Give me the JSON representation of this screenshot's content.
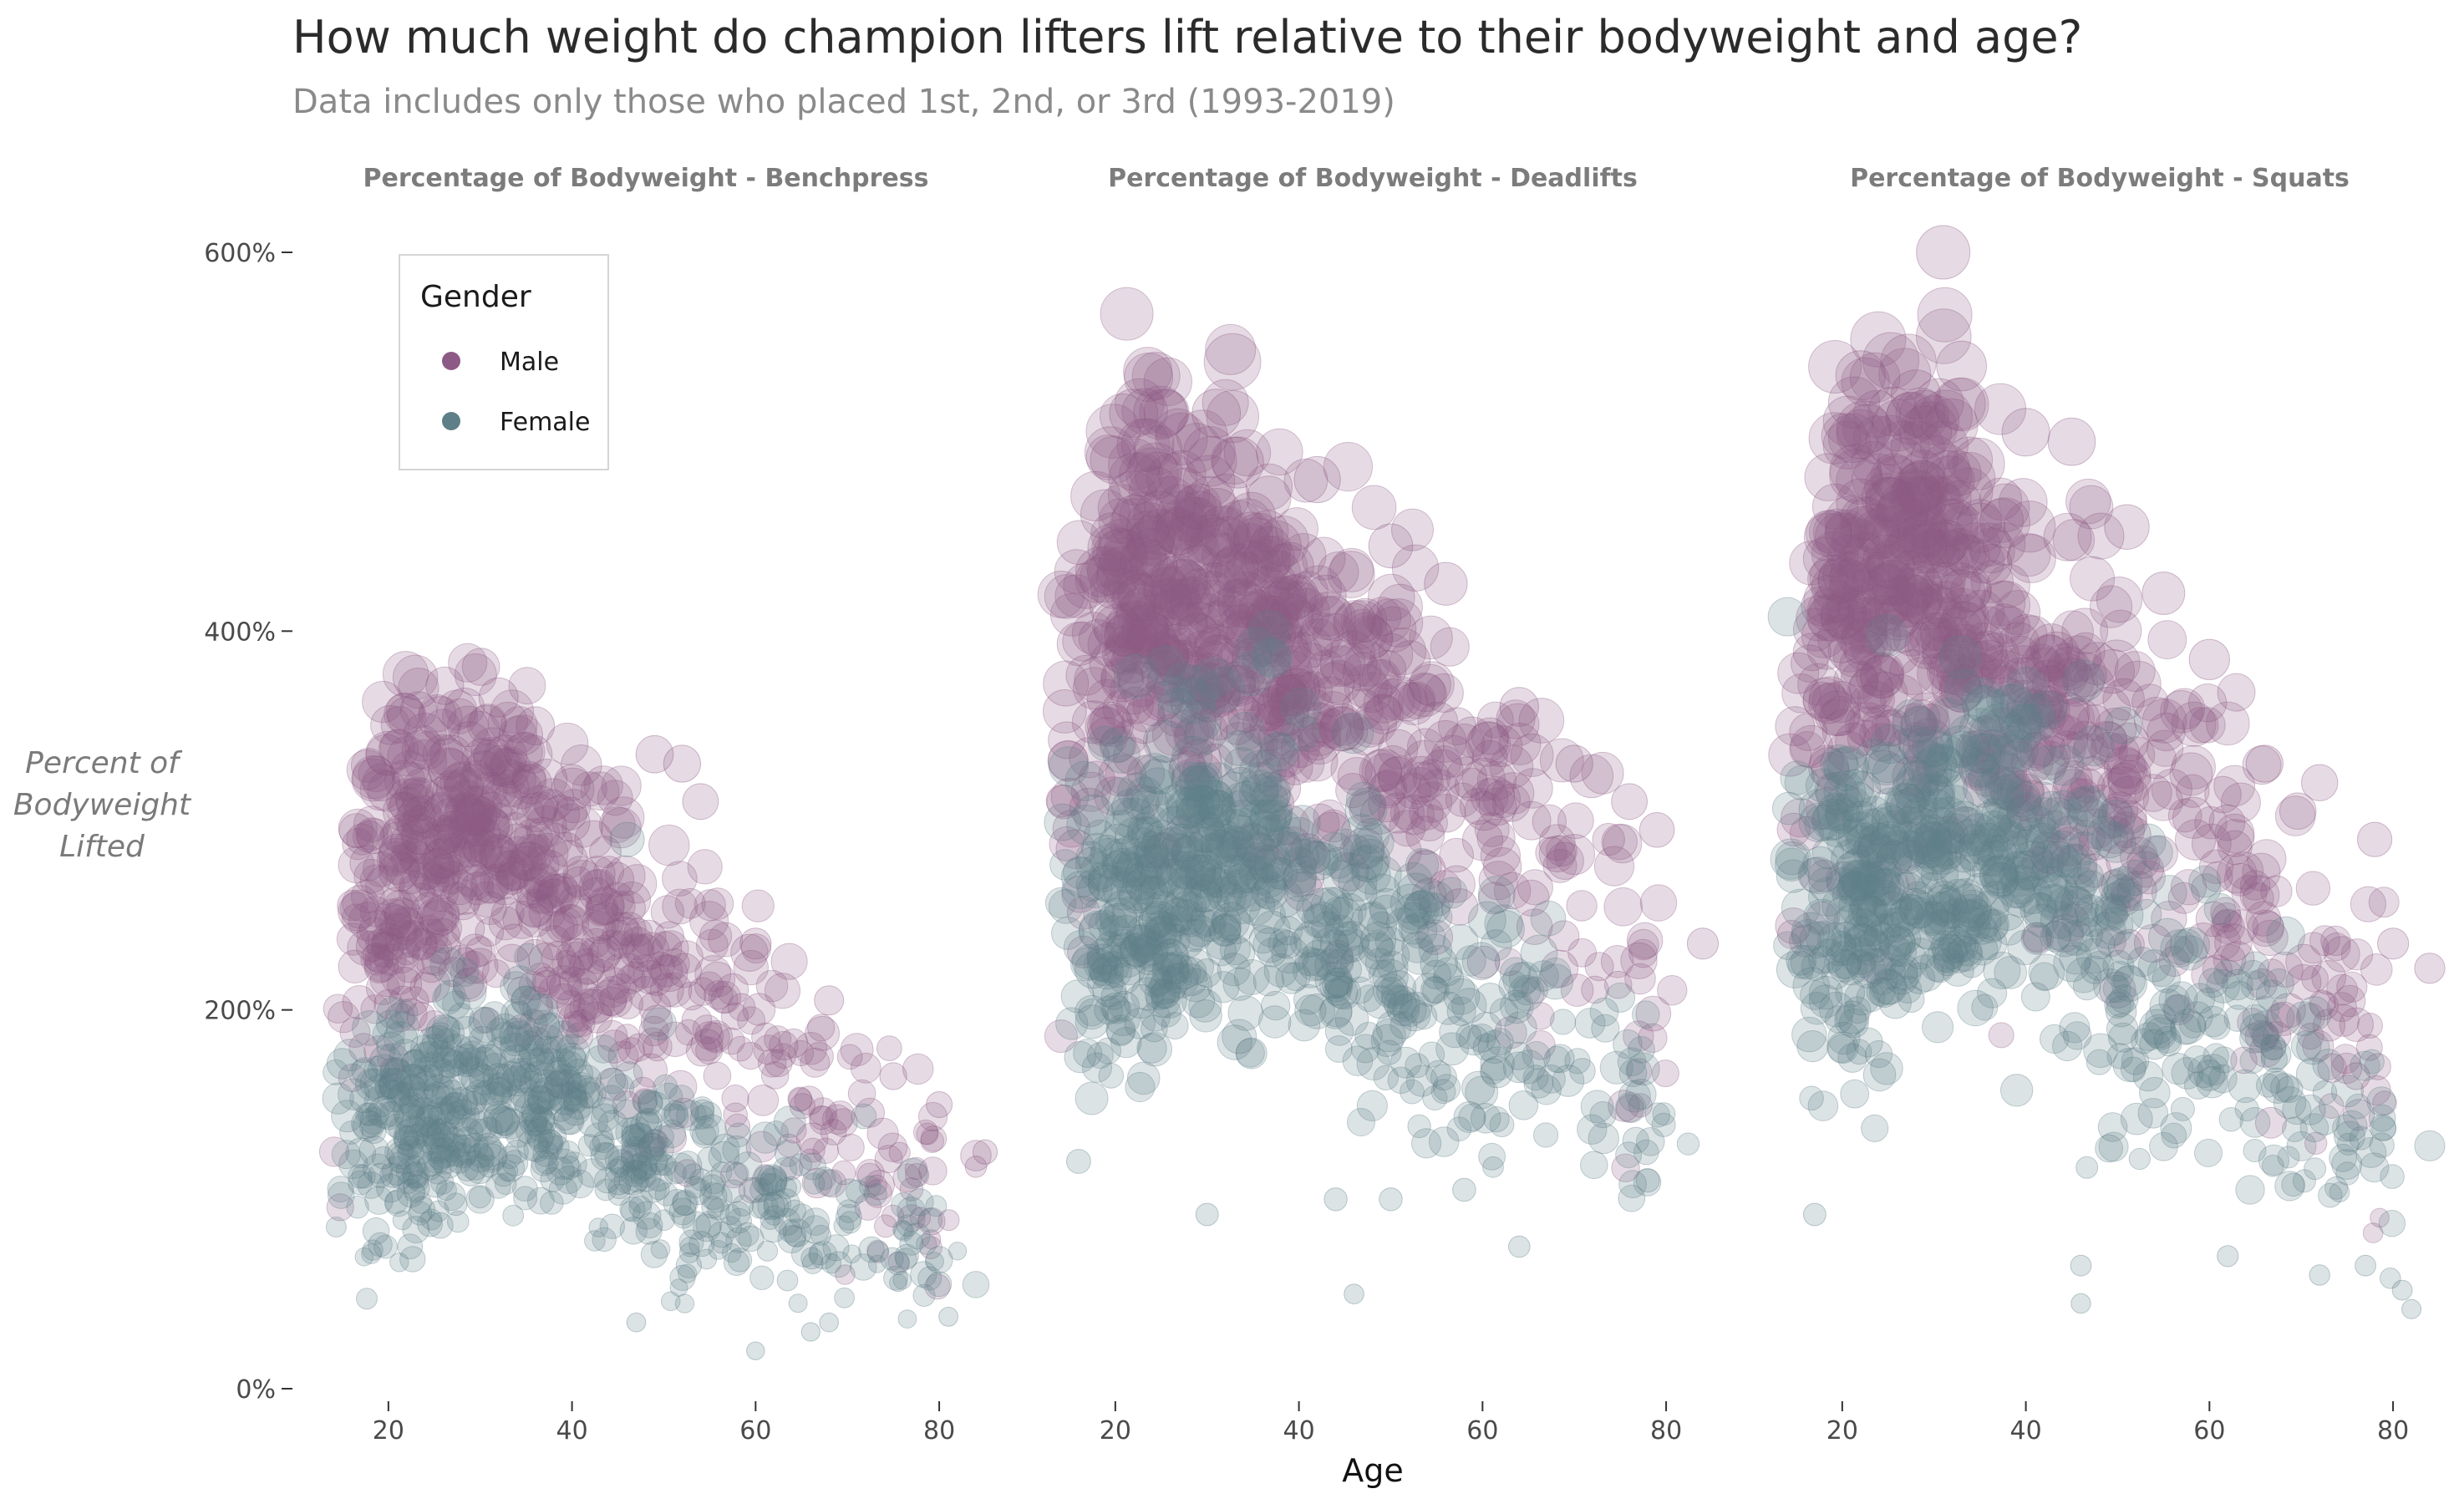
{
  "chart_data": {
    "type": "scatter",
    "title": "How much weight do champion lifters lift relative to their bodyweight and age?",
    "subtitle": "Data includes only those who placed 1st, 2nd, or 3rd (1993-2019)",
    "xlabel": "Age",
    "ylabel": "Percent of Bodyweight Lifted",
    "ylabel_lines": [
      "Percent of",
      "Bodyweight",
      "Lifted"
    ],
    "xlim": [
      10,
      86
    ],
    "ylim": [
      0,
      600
    ],
    "x_ticks": [
      20,
      40,
      60,
      80
    ],
    "x_tick_labels": [
      "20",
      "40",
      "60",
      "80"
    ],
    "y_ticks": [
      0,
      200,
      400,
      600
    ],
    "y_tick_labels": [
      "0%",
      "200%",
      "400%",
      "600%"
    ],
    "grid": false,
    "legend": {
      "title": "Gender",
      "placement": "top-left",
      "entries": [
        {
          "name": "Male",
          "color": "#8c5a85"
        },
        {
          "name": "Female",
          "color": "#5e7f88"
        }
      ]
    },
    "series_colors": {
      "Male": "#8c5a85",
      "Female": "#5e7f88"
    },
    "point_opacity": 0.22,
    "panels": [
      {
        "title": "Percentage of Bodyweight - Benchpress",
        "series": [
          {
            "name": "Male",
            "profile": [
              [
                14,
                180
              ],
              [
                18,
                250
              ],
              [
                22,
                290
              ],
              [
                28,
                295
              ],
              [
                34,
                290
              ],
              [
                38,
                255
              ],
              [
                45,
                230
              ],
              [
                52,
                205
              ],
              [
                58,
                185
              ],
              [
                64,
                160
              ],
              [
                70,
                135
              ],
              [
                76,
                120
              ],
              [
                82,
                110
              ]
            ],
            "spread": [
              [
                14,
                60
              ],
              [
                22,
                55
              ],
              [
                34,
                55
              ],
              [
                46,
                55
              ],
              [
                60,
                50
              ],
              [
                76,
                40
              ]
            ],
            "highlights": [
              [
                22,
                355
              ],
              [
                32,
                365
              ],
              [
                36,
                350
              ],
              [
                40,
                320
              ],
              [
                49,
                335
              ],
              [
                52,
                330
              ],
              [
                54,
                310
              ],
              [
                60,
                235
              ],
              [
                68,
                205
              ],
              [
                75,
                165
              ],
              [
                80,
                150
              ],
              [
                85,
                125
              ]
            ]
          },
          {
            "name": "Female",
            "profile": [
              [
                14,
                140
              ],
              [
                18,
                130
              ],
              [
                24,
                140
              ],
              [
                30,
                150
              ],
              [
                36,
                155
              ],
              [
                40,
                140
              ],
              [
                46,
                125
              ],
              [
                52,
                110
              ],
              [
                58,
                100
              ],
              [
                64,
                95
              ],
              [
                70,
                85
              ],
              [
                76,
                75
              ],
              [
                82,
                60
              ]
            ],
            "spread": [
              [
                14,
                45
              ],
              [
                30,
                40
              ],
              [
                50,
                35
              ],
              [
                70,
                30
              ],
              [
                82,
                25
              ]
            ],
            "highlights": [
              [
                46,
                290
              ],
              [
                47,
                35
              ],
              [
                60,
                20
              ],
              [
                66,
                30
              ],
              [
                68,
                35
              ],
              [
                81,
                38
              ]
            ]
          }
        ]
      },
      {
        "title": "Percentage of Bodyweight - Deadlifts",
        "series": [
          {
            "name": "Male",
            "profile": [
              [
                14,
                330
              ],
              [
                18,
                400
              ],
              [
                22,
                420
              ],
              [
                28,
                420
              ],
              [
                34,
                405
              ],
              [
                38,
                380
              ],
              [
                44,
                365
              ],
              [
                50,
                345
              ],
              [
                56,
                325
              ],
              [
                62,
                295
              ],
              [
                68,
                265
              ],
              [
                74,
                235
              ],
              [
                80,
                205
              ]
            ],
            "spread": [
              [
                14,
                80
              ],
              [
                22,
                70
              ],
              [
                36,
                70
              ],
              [
                50,
                65
              ],
              [
                64,
                60
              ],
              [
                78,
                55
              ]
            ],
            "highlights": [
              [
                22,
                515
              ],
              [
                31,
                515
              ],
              [
                33,
                490
              ],
              [
                42,
                480
              ],
              [
                50,
                445
              ],
              [
                56,
                425
              ],
              [
                64,
                360
              ],
              [
                70,
                330
              ],
              [
                76,
                310
              ],
              [
                79,
                295
              ],
              [
                84,
                235
              ]
            ]
          },
          {
            "name": "Female",
            "profile": [
              [
                14,
                260
              ],
              [
                18,
                240
              ],
              [
                24,
                260
              ],
              [
                30,
                275
              ],
              [
                36,
                285
              ],
              [
                40,
                255
              ],
              [
                46,
                230
              ],
              [
                52,
                215
              ],
              [
                58,
                200
              ],
              [
                64,
                185
              ],
              [
                70,
                170
              ],
              [
                76,
                150
              ],
              [
                80,
                135
              ]
            ],
            "spread": [
              [
                14,
                60
              ],
              [
                30,
                55
              ],
              [
                50,
                50
              ],
              [
                70,
                45
              ],
              [
                80,
                40
              ]
            ],
            "highlights": [
              [
                16,
                120
              ],
              [
                30,
                92
              ],
              [
                44,
                100
              ],
              [
                50,
                100
              ],
              [
                58,
                105
              ],
              [
                64,
                75
              ],
              [
                78,
                110
              ],
              [
                46,
                50
              ]
            ]
          }
        ]
      },
      {
        "title": "Percentage of Bodyweight - Squats",
        "series": [
          {
            "name": "Male",
            "profile": [
              [
                14,
                330
              ],
              [
                18,
                400
              ],
              [
                22,
                430
              ],
              [
                28,
                435
              ],
              [
                34,
                410
              ],
              [
                38,
                380
              ],
              [
                44,
                355
              ],
              [
                50,
                335
              ],
              [
                56,
                305
              ],
              [
                62,
                270
              ],
              [
                68,
                240
              ],
              [
                74,
                205
              ],
              [
                80,
                175
              ]
            ],
            "spread": [
              [
                14,
                80
              ],
              [
                22,
                75
              ],
              [
                36,
                75
              ],
              [
                50,
                65
              ],
              [
                64,
                60
              ],
              [
                78,
                50
              ]
            ],
            "highlights": [
              [
                31,
                600
              ],
              [
                22,
                535
              ],
              [
                28,
                525
              ],
              [
                33,
                540
              ],
              [
                40,
                505
              ],
              [
                45,
                500
              ],
              [
                51,
                455
              ],
              [
                55,
                420
              ],
              [
                60,
                385
              ],
              [
                66,
                330
              ],
              [
                72,
                320
              ],
              [
                78,
                290
              ],
              [
                80,
                235
              ],
              [
                84,
                222
              ],
              [
                76,
                165
              ]
            ]
          },
          {
            "name": "Female",
            "profile": [
              [
                14,
                260
              ],
              [
                18,
                240
              ],
              [
                24,
                255
              ],
              [
                30,
                270
              ],
              [
                36,
                290
              ],
              [
                40,
                280
              ],
              [
                46,
                250
              ],
              [
                52,
                225
              ],
              [
                58,
                200
              ],
              [
                64,
                180
              ],
              [
                70,
                160
              ],
              [
                76,
                135
              ],
              [
                80,
                115
              ]
            ],
            "spread": [
              [
                14,
                60
              ],
              [
                30,
                60
              ],
              [
                50,
                55
              ],
              [
                70,
                40
              ],
              [
                80,
                35
              ]
            ],
            "highlights": [
              [
                17,
                92
              ],
              [
                46,
                65
              ],
              [
                72,
                60
              ],
              [
                77,
                65
              ],
              [
                81,
                52
              ],
              [
                82,
                42
              ],
              [
                62,
                70
              ],
              [
                46,
                45
              ]
            ]
          }
        ]
      }
    ]
  }
}
